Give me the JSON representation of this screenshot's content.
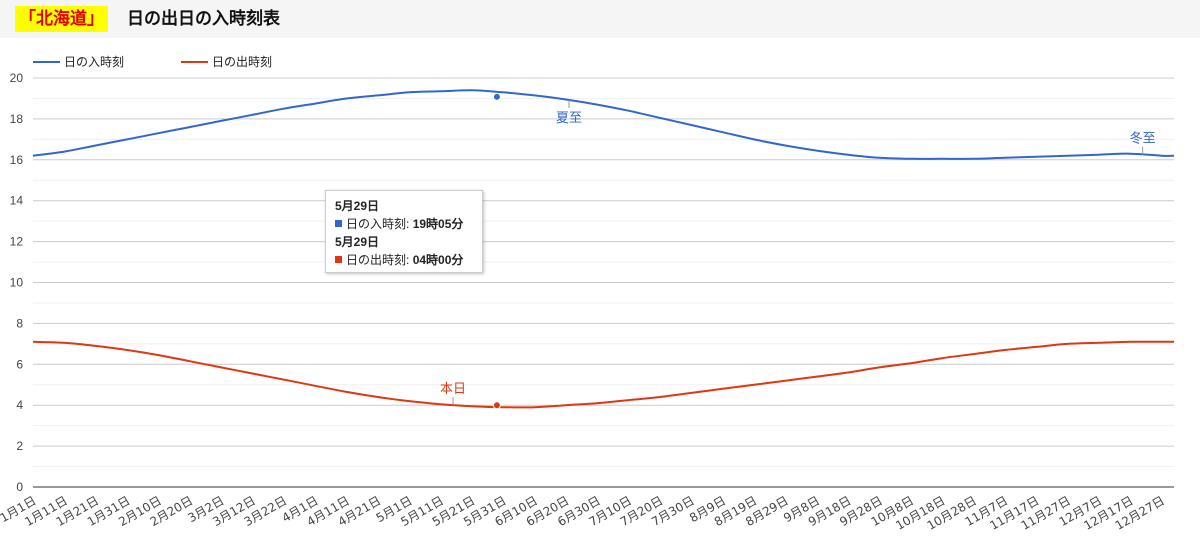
{
  "header": {
    "region": "「北海道」",
    "title": "日の出日の入時刻表"
  },
  "tooltip": {
    "date1": "5月29日",
    "row1_label": "日の入時刻:",
    "row1_value": "19時05分",
    "date2": "5月29日",
    "row2_label": "日の出時刻:",
    "row2_value": "04時00分"
  },
  "chart_data": {
    "type": "line",
    "x_ticks": [
      "1月1日",
      "1月11日",
      "1月21日",
      "1月31日",
      "2月10日",
      "2月20日",
      "3月2日",
      "3月12日",
      "3月22日",
      "4月1日",
      "4月11日",
      "4月21日",
      "5月1日",
      "5月11日",
      "5月21日",
      "5月31日",
      "6月10日",
      "6月20日",
      "6月30日",
      "7月10日",
      "7月20日",
      "7月30日",
      "8月9日",
      "8月19日",
      "8月29日",
      "9月8日",
      "9月18日",
      "9月28日",
      "10月8日",
      "10月18日",
      "10月28日",
      "11月7日",
      "11月17日",
      "11月27日",
      "12月7日",
      "12月17日",
      "12月27日"
    ],
    "ylim": [
      0,
      20
    ],
    "y_ticks": [
      0,
      2,
      4,
      6,
      8,
      10,
      12,
      14,
      16,
      18,
      20
    ],
    "grid": true,
    "legend_position": "top-left",
    "series": [
      {
        "name": "日の入時刻",
        "color": "#3366cc",
        "points": [
          [
            1,
            16.2
          ],
          [
            11,
            16.4
          ],
          [
            21,
            16.7
          ],
          [
            31,
            17.0
          ],
          [
            41,
            17.3
          ],
          [
            51,
            17.6
          ],
          [
            61,
            17.9
          ],
          [
            71,
            18.2
          ],
          [
            81,
            18.5
          ],
          [
            91,
            18.75
          ],
          [
            101,
            19.0
          ],
          [
            111,
            19.15
          ],
          [
            121,
            19.3
          ],
          [
            131,
            19.35
          ],
          [
            141,
            19.4
          ],
          [
            151,
            19.3
          ],
          [
            161,
            19.15
          ],
          [
            171,
            18.95
          ],
          [
            181,
            18.7
          ],
          [
            191,
            18.4
          ],
          [
            201,
            18.05
          ],
          [
            211,
            17.7
          ],
          [
            221,
            17.35
          ],
          [
            231,
            17.0
          ],
          [
            241,
            16.7
          ],
          [
            251,
            16.45
          ],
          [
            261,
            16.25
          ],
          [
            271,
            16.1
          ],
          [
            281,
            16.05
          ],
          [
            291,
            16.05
          ],
          [
            301,
            16.05
          ],
          [
            311,
            16.1
          ],
          [
            321,
            16.15
          ],
          [
            331,
            16.2
          ],
          [
            341,
            16.25
          ],
          [
            351,
            16.3
          ],
          [
            361,
            16.2
          ],
          [
            365,
            16.2
          ]
        ],
        "annotation": {
          "label": "夏至",
          "day": 172
        },
        "annotation2": {
          "label": "冬至",
          "day": 355
        }
      },
      {
        "name": "日の出時刻",
        "color": "#dc3912",
        "points": [
          [
            1,
            7.1
          ],
          [
            11,
            7.05
          ],
          [
            21,
            6.9
          ],
          [
            31,
            6.7
          ],
          [
            41,
            6.45
          ],
          [
            51,
            6.15
          ],
          [
            61,
            5.85
          ],
          [
            71,
            5.55
          ],
          [
            81,
            5.25
          ],
          [
            91,
            4.95
          ],
          [
            101,
            4.65
          ],
          [
            111,
            4.4
          ],
          [
            121,
            4.2
          ],
          [
            131,
            4.05
          ],
          [
            141,
            3.95
          ],
          [
            151,
            3.9
          ],
          [
            161,
            3.9
          ],
          [
            171,
            4.0
          ],
          [
            181,
            4.1
          ],
          [
            191,
            4.25
          ],
          [
            201,
            4.4
          ],
          [
            211,
            4.6
          ],
          [
            221,
            4.8
          ],
          [
            231,
            5.0
          ],
          [
            241,
            5.2
          ],
          [
            251,
            5.4
          ],
          [
            261,
            5.6
          ],
          [
            271,
            5.85
          ],
          [
            281,
            6.05
          ],
          [
            291,
            6.3
          ],
          [
            301,
            6.5
          ],
          [
            311,
            6.7
          ],
          [
            321,
            6.85
          ],
          [
            331,
            7.0
          ],
          [
            341,
            7.05
          ],
          [
            351,
            7.1
          ],
          [
            361,
            7.1
          ],
          [
            365,
            7.1
          ]
        ],
        "annotation": {
          "label": "本日",
          "day": 135
        }
      }
    ],
    "highlight_day": 149,
    "highlight_values": {
      "日の入時刻": 19.08,
      "日の出時刻": 4.0
    }
  }
}
